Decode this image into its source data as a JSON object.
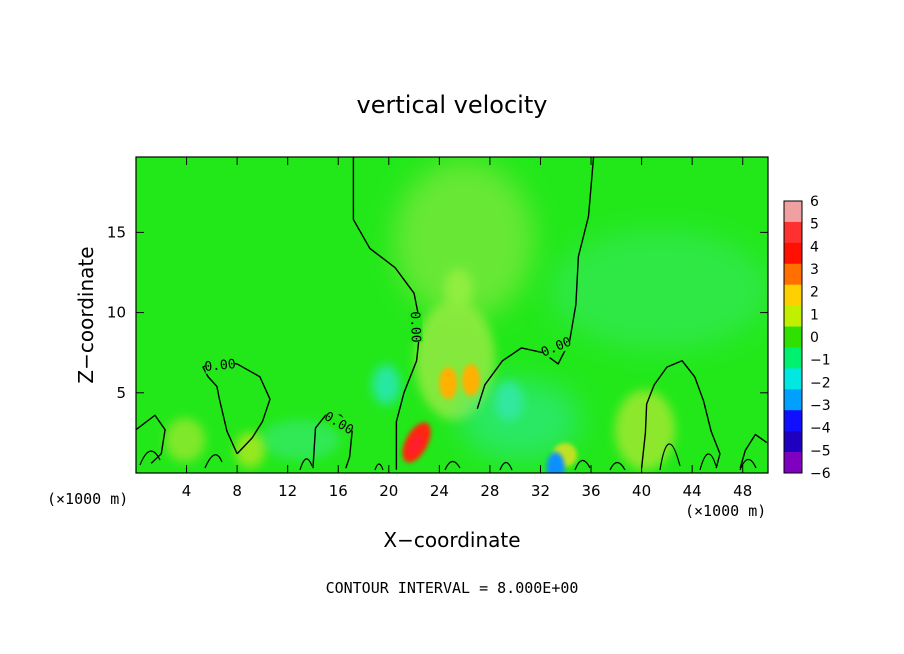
{
  "chart_data": {
    "type": "heatmap",
    "title": "vertical velocity",
    "xlabel": "X−coordinate",
    "ylabel": "Z−coordinate",
    "x_unit": "(×1000 m)",
    "y_unit": "(×1000 m)",
    "xlim": [
      0,
      50
    ],
    "ylim": [
      0,
      19.7
    ],
    "x_ticks": [
      4,
      8,
      12,
      16,
      20,
      24,
      28,
      32,
      36,
      40,
      44,
      48
    ],
    "y_ticks": [
      5,
      10,
      15
    ],
    "x_tick_labels": [
      "4",
      "8",
      "12",
      "16",
      "20",
      "24",
      "28",
      "32",
      "36",
      "40",
      "44",
      "48"
    ],
    "y_tick_labels": [
      "5",
      "10",
      "15"
    ],
    "colorbar": {
      "levels": [
        6,
        5,
        4,
        3,
        2,
        1,
        0,
        -1,
        -2,
        -3,
        -4,
        -5,
        -6
      ],
      "labels": [
        "6",
        "5",
        "4",
        "3",
        "2",
        "1",
        "0",
        "−1",
        "−2",
        "−3",
        "−4",
        "−5",
        "−6"
      ],
      "colors": [
        "#f0a0a0",
        "#ff3030",
        "#ff1000",
        "#ff7000",
        "#ffd000",
        "#c0f000",
        "#30e000",
        "#00f070",
        "#00e8e0",
        "#00a0ff",
        "#1010ff",
        "#2000c0",
        "#8000c0"
      ]
    },
    "background_value": 0,
    "background_color": "#22e81a",
    "features": [
      {
        "x": 22.2,
        "z": 1.9,
        "value": 5,
        "color": "#ff2810"
      },
      {
        "x": 24.7,
        "z": 5.6,
        "value": 2.5,
        "color": "#ffb000"
      },
      {
        "x": 26.5,
        "z": 5.8,
        "value": 2.5,
        "color": "#ffb000"
      },
      {
        "x": 25.5,
        "z": 11.5,
        "value": 0.5,
        "color": "#90ee40"
      },
      {
        "x": 19.8,
        "z": 5.5,
        "value": -1.2,
        "color": "#28e8a0"
      },
      {
        "x": 29.5,
        "z": 4.5,
        "value": -0.8,
        "color": "#30e8a0"
      },
      {
        "x": 33.2,
        "z": 0.3,
        "value": -3,
        "color": "#1090ff"
      }
    ],
    "contours": [
      {
        "level": 0,
        "label": "0.00",
        "points": [
          [
            17.2,
            19.7
          ],
          [
            17.2,
            15.8
          ],
          [
            18.5,
            14.0
          ],
          [
            20.5,
            12.8
          ],
          [
            22.0,
            11.2
          ],
          [
            22.5,
            9.2
          ],
          [
            22.2,
            7.0
          ],
          [
            21.2,
            5.0
          ],
          [
            20.6,
            3.2
          ],
          [
            20.6,
            0.2
          ]
        ]
      },
      {
        "level": 0,
        "label": "0.00",
        "points": [
          [
            36.2,
            19.7
          ],
          [
            35.8,
            16.0
          ],
          [
            35.0,
            13.5
          ],
          [
            34.8,
            10.5
          ],
          [
            34.3,
            8.2
          ],
          [
            33.4,
            6.8
          ],
          [
            32.2,
            7.5
          ],
          [
            30.5,
            7.8
          ],
          [
            29.0,
            7.0
          ],
          [
            27.6,
            5.5
          ],
          [
            27.0,
            4.0
          ]
        ]
      },
      {
        "level": 0,
        "label": "0.00",
        "points": [
          [
            8.0,
            1.2
          ],
          [
            7.2,
            2.6
          ],
          [
            6.6,
            4.6
          ],
          [
            6.4,
            5.4
          ],
          [
            5.7,
            6.0
          ],
          [
            5.3,
            6.6
          ],
          [
            6.3,
            7.0
          ],
          [
            8.0,
            6.8
          ],
          [
            9.8,
            6.0
          ],
          [
            10.6,
            4.6
          ],
          [
            10.0,
            3.2
          ],
          [
            9.2,
            2.2
          ],
          [
            8.0,
            1.2
          ]
        ]
      },
      {
        "level": 0,
        "label": "0.00",
        "points": [
          [
            14.0,
            0.3
          ],
          [
            14.2,
            2.8
          ],
          [
            15.0,
            3.6
          ],
          [
            16.2,
            3.6
          ],
          [
            17.1,
            2.6
          ],
          [
            16.9,
            1.0
          ],
          [
            16.6,
            0.3
          ]
        ]
      },
      {
        "level": 0,
        "label": "",
        "points": [
          [
            40.0,
            0.3
          ],
          [
            40.3,
            2.5
          ],
          [
            40.4,
            4.3
          ],
          [
            41.0,
            5.5
          ],
          [
            42.0,
            6.6
          ],
          [
            43.2,
            7.0
          ],
          [
            44.2,
            6.0
          ],
          [
            44.9,
            4.5
          ],
          [
            45.5,
            2.6
          ],
          [
            46.2,
            1.2
          ],
          [
            45.9,
            0.3
          ]
        ]
      },
      {
        "level": 0,
        "label": "",
        "points": [
          [
            0.0,
            2.7
          ],
          [
            1.5,
            3.6
          ],
          [
            2.3,
            2.7
          ],
          [
            2.0,
            1.2
          ],
          [
            1.2,
            0.6
          ]
        ]
      },
      {
        "level": 0,
        "label": "",
        "points": [
          [
            47.8,
            0.3
          ],
          [
            48.2,
            1.4
          ],
          [
            49.0,
            2.4
          ],
          [
            49.9,
            1.9
          ]
        ]
      }
    ],
    "footer": "CONTOUR INTERVAL = 8.000E+00"
  }
}
